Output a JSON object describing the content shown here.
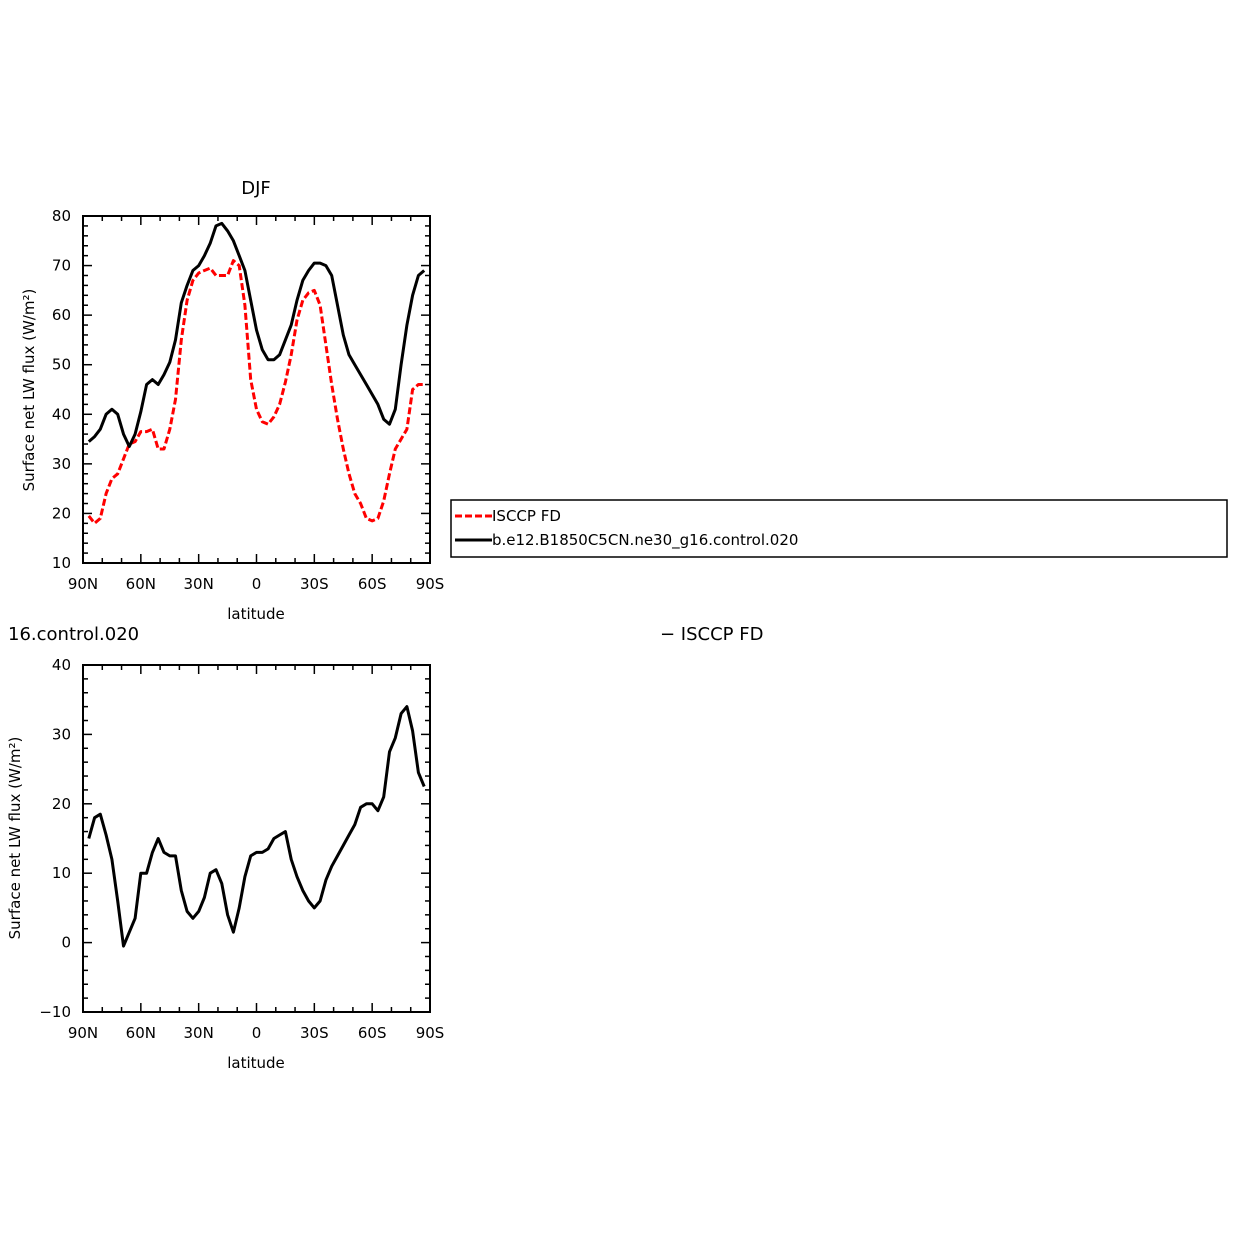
{
  "chart_data": [
    {
      "type": "line",
      "title": "DJF",
      "xlabel": "latitude",
      "ylabel": "Surface net LW flux (W/m²)",
      "xlim": [
        90,
        -90
      ],
      "ylim": [
        10,
        80
      ],
      "x_ticks": [
        "90N",
        "60N",
        "30N",
        "0",
        "30S",
        "60S",
        "90S"
      ],
      "y_ticks": [
        "10",
        "20",
        "30",
        "40",
        "50",
        "60",
        "70",
        "80"
      ],
      "legend": {
        "placement": "right-outside",
        "entries": [
          "ISCCP FD",
          "b.e12.B1850C5CN.ne30_g16.control.020"
        ]
      },
      "series": [
        {
          "name": "ISCCP FD",
          "color": "#ff0000",
          "dashed": true,
          "x": [
            87,
            84,
            81,
            78,
            75,
            72,
            69,
            66,
            63,
            60,
            57,
            54,
            51,
            48,
            45,
            42,
            39,
            36,
            33,
            30,
            27,
            24,
            21,
            18,
            15,
            12,
            9,
            6,
            3,
            0,
            -3,
            -6,
            -9,
            -12,
            -15,
            -18,
            -21,
            -24,
            -27,
            -30,
            -33,
            -36,
            -39,
            -42,
            -45,
            -48,
            -51,
            -54,
            -57,
            -60,
            -63,
            -66,
            -69,
            -72,
            -75,
            -78,
            -81,
            -84,
            -87
          ],
          "y": [
            19.5,
            18,
            19,
            24,
            27,
            28,
            31,
            34,
            34.5,
            36.5,
            36.5,
            37,
            33,
            33,
            37,
            43,
            55,
            63,
            67,
            68.5,
            69,
            69.5,
            68,
            68,
            68,
            71,
            70,
            62,
            47,
            41,
            38.5,
            38,
            39.5,
            42,
            46.5,
            52,
            59,
            63,
            64.5,
            65,
            62,
            54,
            46,
            39,
            33,
            28,
            24,
            22,
            19,
            18.5,
            19,
            22.5,
            28,
            33,
            35,
            37,
            45,
            46,
            46
          ]
        },
        {
          "name": "b.e12.B1850C5CN.ne30_g16.control.020",
          "color": "#000000",
          "dashed": false,
          "x": [
            87,
            84,
            81,
            78,
            75,
            72,
            69,
            66,
            63,
            60,
            57,
            54,
            51,
            48,
            45,
            42,
            39,
            36,
            33,
            30,
            27,
            24,
            21,
            18,
            15,
            12,
            9,
            6,
            3,
            0,
            -3,
            -6,
            -9,
            -12,
            -15,
            -18,
            -21,
            -24,
            -27,
            -30,
            -33,
            -36,
            -39,
            -42,
            -45,
            -48,
            -51,
            -54,
            -57,
            -60,
            -63,
            -66,
            -69,
            -72,
            -75,
            -78,
            -81,
            -84,
            -87
          ],
          "y": [
            34.5,
            35.5,
            37,
            40,
            41,
            40,
            36,
            33.5,
            36,
            40.5,
            46,
            47,
            46,
            48,
            50.5,
            55,
            62.5,
            66,
            69,
            70,
            72,
            74.5,
            78,
            78.5,
            77,
            75,
            72,
            69,
            63,
            57,
            53,
            51,
            51,
            52,
            55,
            58,
            63,
            67,
            69,
            70.5,
            70.5,
            70,
            68,
            62,
            56,
            52,
            50,
            48,
            46,
            44,
            42,
            39,
            38,
            41,
            50,
            58,
            64,
            68,
            69
          ]
        }
      ]
    },
    {
      "type": "line",
      "title": "16.control.020",
      "title_right": "− ISCCP FD",
      "xlabel": "latitude",
      "ylabel": "Surface net LW flux (W/m²)",
      "xlim": [
        90,
        -90
      ],
      "ylim": [
        -10,
        40
      ],
      "x_ticks": [
        "90N",
        "60N",
        "30N",
        "0",
        "30S",
        "60S",
        "90S"
      ],
      "y_ticks": [
        "−10",
        "0",
        "10",
        "20",
        "30",
        "40"
      ],
      "series": [
        {
          "color": "#000000",
          "dashed": false,
          "x": [
            87,
            84,
            81,
            78,
            75,
            72,
            69,
            66,
            63,
            60,
            57,
            54,
            51,
            48,
            45,
            42,
            39,
            36,
            33,
            30,
            27,
            24,
            21,
            18,
            15,
            12,
            9,
            6,
            3,
            0,
            -3,
            -6,
            -9,
            -12,
            -15,
            -18,
            -21,
            -24,
            -27,
            -30,
            -33,
            -36,
            -39,
            -42,
            -45,
            -48,
            -51,
            -54,
            -57,
            -60,
            -63,
            -66,
            -69,
            -72,
            -75,
            -78,
            -81,
            -84,
            -87
          ],
          "y": [
            15,
            18,
            18.5,
            15.5,
            12,
            6,
            -0.5,
            1.5,
            3.5,
            10,
            10,
            13,
            15,
            13,
            12.5,
            12.5,
            7.5,
            4.5,
            3.5,
            4.5,
            6.5,
            10,
            10.5,
            8.5,
            4,
            1.5,
            5,
            9.5,
            12.5,
            13,
            13,
            13.5,
            15,
            15.5,
            16,
            12,
            9.5,
            7.5,
            6,
            5,
            6,
            9,
            11,
            12.5,
            14,
            15.5,
            17,
            19.5,
            20,
            20,
            19,
            21,
            27.5,
            29.5,
            33,
            34,
            30.5,
            24.5,
            22.5
          ]
        }
      ]
    }
  ]
}
